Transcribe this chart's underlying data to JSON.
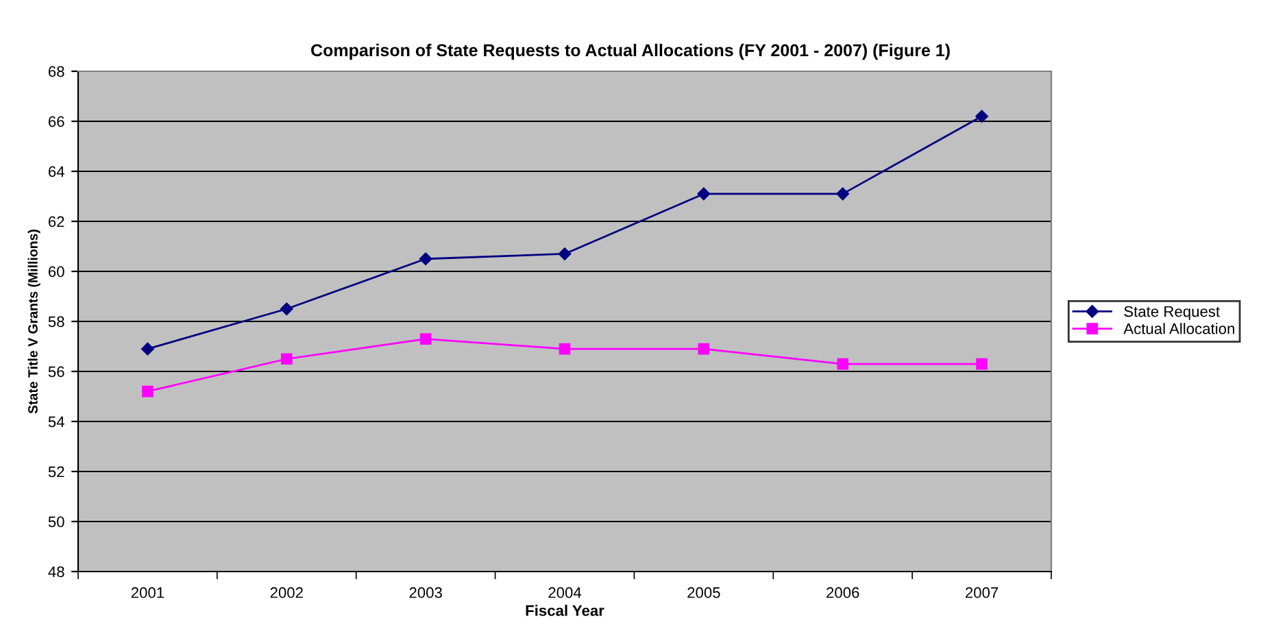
{
  "chart_data": {
    "type": "line",
    "title": "Comparison of State Requests to Actual Allocations (FY 2001 - 2007) (Figure 1)",
    "xlabel": "Fiscal Year",
    "ylabel": "State Title V Grants (Millions)",
    "categories": [
      "2001",
      "2002",
      "2003",
      "2004",
      "2005",
      "2006",
      "2007"
    ],
    "series": [
      {
        "name": "State Request",
        "color": "#000080",
        "marker": "diamond",
        "values": [
          56.9,
          58.5,
          60.5,
          60.7,
          63.1,
          63.1,
          66.2
        ]
      },
      {
        "name": "Actual Allocation",
        "color": "#ff00ff",
        "marker": "square",
        "values": [
          55.2,
          56.5,
          57.3,
          56.9,
          56.9,
          56.3,
          56.3
        ]
      }
    ],
    "ylim": [
      48,
      68
    ],
    "yticks": [
      48,
      50,
      52,
      54,
      56,
      58,
      60,
      62,
      64,
      66,
      68
    ],
    "grid": "y",
    "legend": "right",
    "line_style": "solid"
  }
}
